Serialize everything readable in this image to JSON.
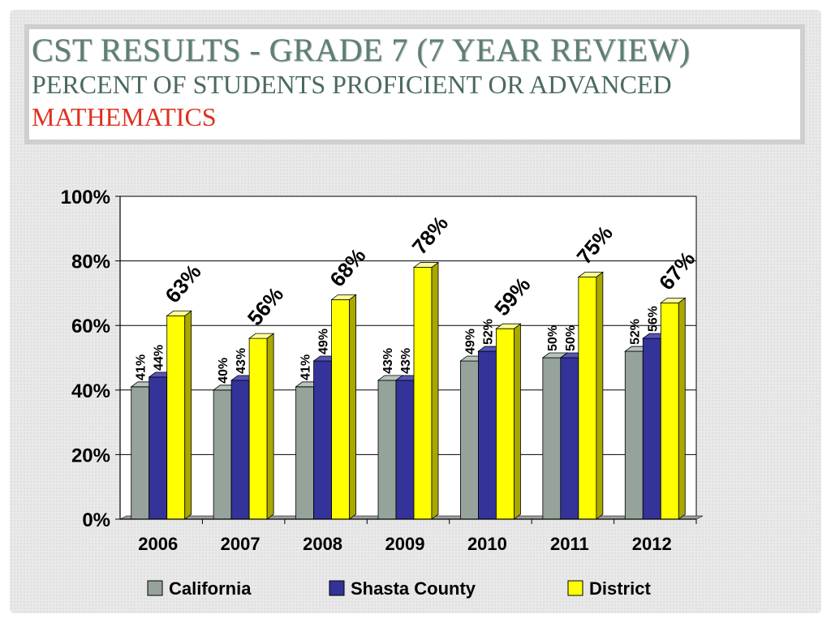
{
  "slide": {
    "title": "CST RESULTS - GRADE 7 (7 YEAR REVIEW)",
    "subtitle": "PERCENT OF STUDENTS PROFICIENT OR ADVANCED",
    "subject": "MATHEMATICS"
  },
  "colors": {
    "california": "#95a39b",
    "shasta": "#333399",
    "district": "#ffff00",
    "subject": "#e03020"
  },
  "chart_data": {
    "type": "bar",
    "categories": [
      "2006",
      "2007",
      "2008",
      "2009",
      "2010",
      "2011",
      "2012"
    ],
    "series": [
      {
        "name": "California",
        "values": [
          41,
          40,
          41,
          43,
          49,
          50,
          52
        ],
        "labels": [
          "41%",
          "40%",
          "41%",
          "43%",
          "49%",
          "50%",
          "52%"
        ]
      },
      {
        "name": "Shasta County",
        "values": [
          44,
          43,
          49,
          43,
          52,
          50,
          56
        ],
        "labels": [
          "44%",
          "43%",
          "49%",
          "43%",
          "52%",
          "50%",
          "56%"
        ]
      },
      {
        "name": "District",
        "values": [
          63,
          56,
          68,
          78,
          59,
          75,
          67
        ],
        "labels": [
          "63%",
          "56%",
          "68%",
          "78%",
          "59%",
          "75%",
          "67%"
        ]
      }
    ],
    "yticks": [
      "0%",
      "20%",
      "40%",
      "60%",
      "80%",
      "100%"
    ],
    "ylim": [
      0,
      100
    ],
    "grid": true,
    "legend": "bottom"
  }
}
